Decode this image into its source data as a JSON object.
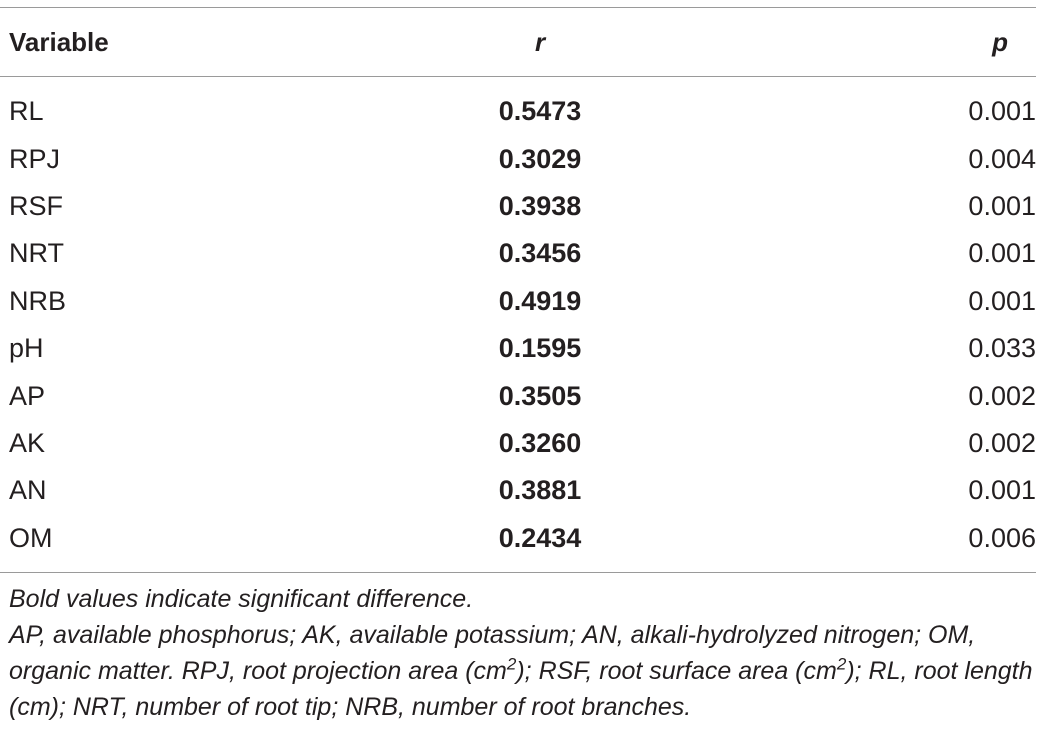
{
  "table": {
    "headers": {
      "variable": "Variable",
      "r": "r",
      "p": "p"
    },
    "rows": [
      {
        "variable": "RL",
        "r": "0.5473",
        "p": "0.001"
      },
      {
        "variable": "RPJ",
        "r": "0.3029",
        "p": "0.004"
      },
      {
        "variable": "RSF",
        "r": "0.3938",
        "p": "0.001"
      },
      {
        "variable": "NRT",
        "r": "0.3456",
        "p": "0.001"
      },
      {
        "variable": "NRB",
        "r": "0.4919",
        "p": "0.001"
      },
      {
        "variable": "pH",
        "r": "0.1595",
        "p": "0.033"
      },
      {
        "variable": "AP",
        "r": "0.3505",
        "p": "0.002"
      },
      {
        "variable": "AK",
        "r": "0.3260",
        "p": "0.002"
      },
      {
        "variable": "AN",
        "r": "0.3881",
        "p": "0.001"
      },
      {
        "variable": "OM",
        "r": "0.2434",
        "p": "0.006"
      }
    ]
  },
  "footnotes": {
    "note1": "Bold values indicate significant difference.",
    "note2_part1": "AP, available phosphorus; AK, available potassium; AN, alkali-hydrolyzed nitrogen; OM, organic matter. RPJ, root projection area (cm",
    "sup1": "2",
    "note2_part2": "); RSF, root surface area (cm",
    "sup2": "2",
    "note2_part3": "); RL, root length (cm); NRT, number of root tip; NRB, number of root branches."
  }
}
